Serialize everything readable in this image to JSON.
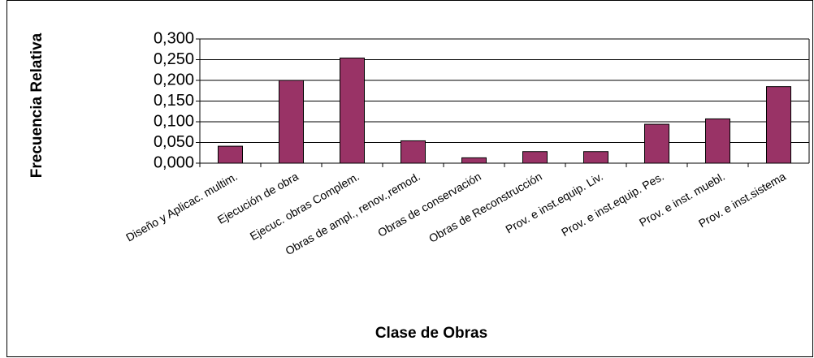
{
  "chart_data": {
    "type": "bar",
    "x_label": "Clase de Obras",
    "y_label": "Frecuencia Relativa",
    "categories": [
      "Diseño y Aplicac. multim.",
      "Ejecución de obra",
      "Ejecuc. obras Complem.",
      "Obras de ampl., renov.,remod.",
      "Obras de conservación",
      "Obras de Reconstrucción",
      "Prov. e inst.equip. Liv.",
      "Prov. e inst.equip. Pes.",
      "Prov. e inst. muebl.",
      "Prov. e inst.sistema"
    ],
    "values": [
      0.041,
      0.2,
      0.254,
      0.054,
      0.013,
      0.028,
      0.028,
      0.094,
      0.107,
      0.185
    ],
    "color": "#993366",
    "ylim": [
      0,
      0.3
    ],
    "yticks": [
      {
        "value": 0,
        "label": "0,000"
      },
      {
        "value": 0.05,
        "label": "0,050"
      },
      {
        "value": 0.1,
        "label": "0,100"
      },
      {
        "value": 0.15,
        "label": "0,150"
      },
      {
        "value": 0.2,
        "label": "0,200"
      },
      {
        "value": 0.25,
        "label": "0,250"
      },
      {
        "value": 0.3,
        "label": "0,300"
      }
    ],
    "grid": true
  }
}
